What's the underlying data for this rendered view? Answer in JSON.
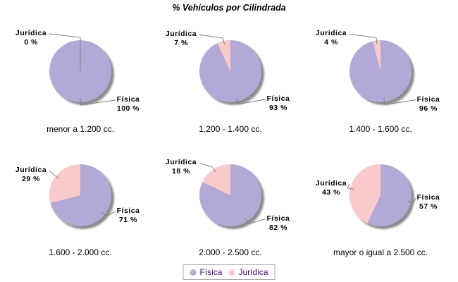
{
  "chart_data": {
    "type": "pie",
    "title": "% Vehículos por Cilindrada",
    "layout": "2 rows x 3 columns of pies, legend at bottom center",
    "series_labels": [
      "Física",
      "Jurídica"
    ],
    "pies": [
      {
        "category": "menor a 1.200 cc.",
        "fisica": 100,
        "juridica": 0,
        "fisica_label": "100 %",
        "juridica_label": "0 %"
      },
      {
        "category": "1.200 - 1.400 cc.",
        "fisica": 93,
        "juridica": 7,
        "fisica_label": "93 %",
        "juridica_label": "7 %"
      },
      {
        "category": "1.400 - 1.600 cc.",
        "fisica": 96,
        "juridica": 4,
        "fisica_label": "96 %",
        "juridica_label": "4 %"
      },
      {
        "category": "1.600 - 2.000 cc.",
        "fisica": 71,
        "juridica": 29,
        "fisica_label": "71 %",
        "juridica_label": "29 %"
      },
      {
        "category": "2.000 - 2.500 cc.",
        "fisica": 82,
        "juridica": 18,
        "fisica_label": "82 %",
        "juridica_label": "18 %"
      },
      {
        "category": "mayor o igual a 2.500 cc.",
        "fisica": 57,
        "juridica": 43,
        "fisica_label": "57 %",
        "juridica_label": "43 %"
      }
    ],
    "legend": {
      "position": "bottom-center",
      "items": [
        {
          "label": "Física",
          "color": "#b3a9d6"
        },
        {
          "label": "Jurídica",
          "color": "#fac9ca"
        }
      ]
    },
    "colors": {
      "fisica_slice": "#b3a9d6",
      "juridica_slice": "#fac9ca",
      "shadow": "#8c8c8c",
      "leader_line": "#7f7f7f",
      "label_text": "#000000",
      "caption_text": "#000000",
      "legend_text": "#4b0082",
      "legend_border": "#ababab",
      "background": "#ffffff"
    }
  }
}
